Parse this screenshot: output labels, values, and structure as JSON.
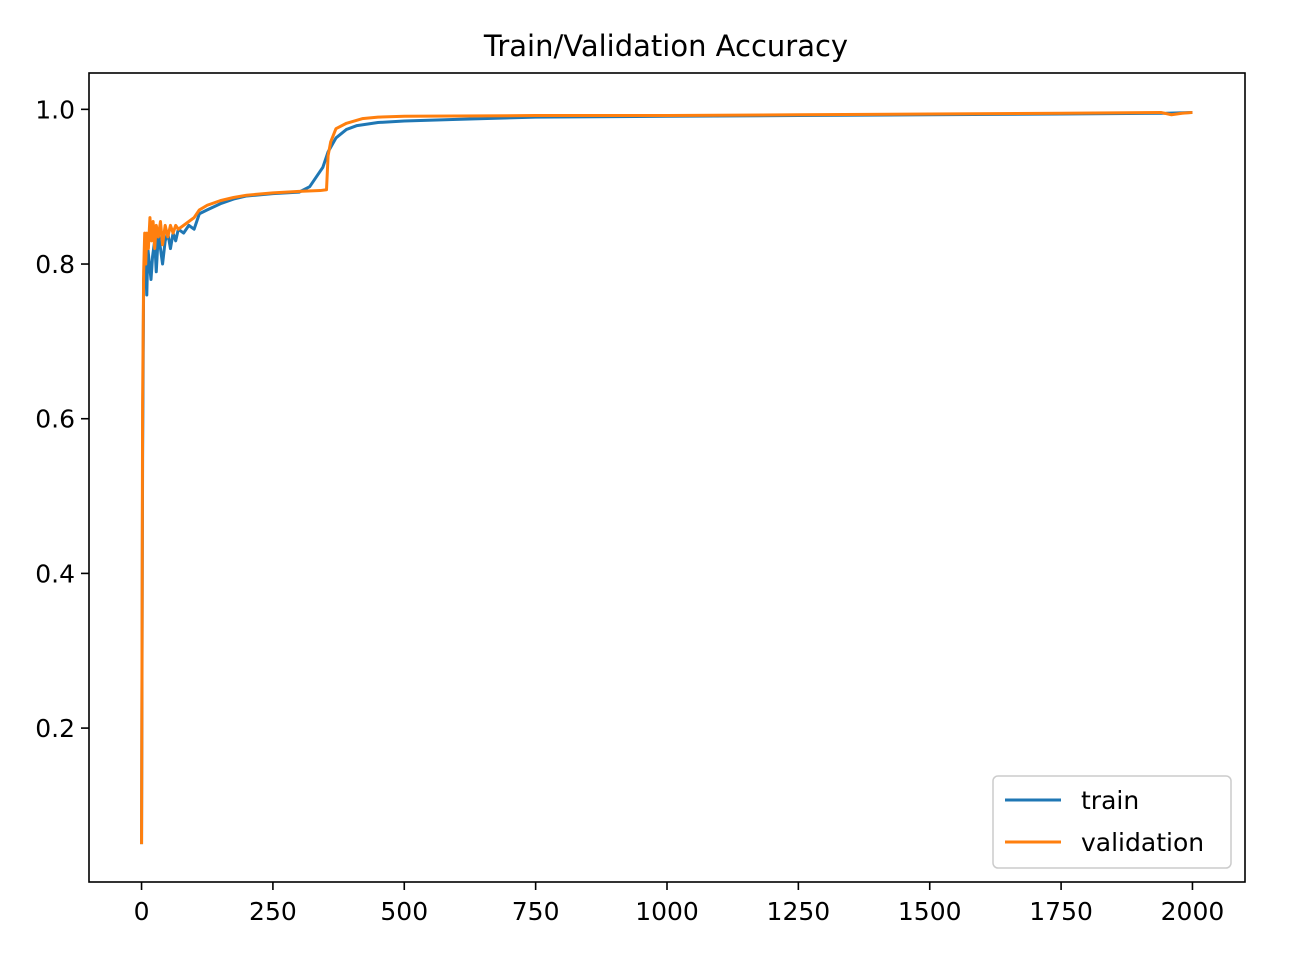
{
  "chart_data": {
    "type": "line",
    "title": "Train/Validation Accuracy",
    "xlabel": "",
    "ylabel": "",
    "xlim": [
      -100,
      2100
    ],
    "ylim": [
      0.001,
      1.047
    ],
    "xticks": [
      0,
      250,
      500,
      750,
      1000,
      1250,
      1500,
      1750,
      2000
    ],
    "xtick_labels": [
      "0",
      "250",
      "500",
      "750",
      "1000",
      "1250",
      "1500",
      "1750",
      "2000"
    ],
    "yticks": [
      0.2,
      0.4,
      0.6,
      0.8,
      1.0
    ],
    "ytick_labels": [
      "0.2",
      "0.4",
      "0.6",
      "0.8",
      "1.0"
    ],
    "grid": false,
    "legend_position": "lower-right",
    "series": [
      {
        "name": "train",
        "color": "#1f77b4",
        "points": [
          [
            0,
            0.05
          ],
          [
            2,
            0.55
          ],
          [
            4,
            0.78
          ],
          [
            6,
            0.8
          ],
          [
            8,
            0.81
          ],
          [
            10,
            0.76
          ],
          [
            12,
            0.82
          ],
          [
            15,
            0.8
          ],
          [
            18,
            0.78
          ],
          [
            21,
            0.81
          ],
          [
            25,
            0.83
          ],
          [
            28,
            0.79
          ],
          [
            32,
            0.84
          ],
          [
            36,
            0.82
          ],
          [
            40,
            0.8
          ],
          [
            45,
            0.83
          ],
          [
            50,
            0.84
          ],
          [
            55,
            0.82
          ],
          [
            60,
            0.84
          ],
          [
            65,
            0.83
          ],
          [
            70,
            0.845
          ],
          [
            80,
            0.84
          ],
          [
            90,
            0.85
          ],
          [
            100,
            0.845
          ],
          [
            110,
            0.865
          ],
          [
            125,
            0.87
          ],
          [
            150,
            0.878
          ],
          [
            175,
            0.884
          ],
          [
            200,
            0.888
          ],
          [
            250,
            0.891
          ],
          [
            300,
            0.893
          ],
          [
            320,
            0.9
          ],
          [
            335,
            0.915
          ],
          [
            345,
            0.925
          ],
          [
            355,
            0.945
          ],
          [
            370,
            0.963
          ],
          [
            390,
            0.974
          ],
          [
            410,
            0.979
          ],
          [
            450,
            0.983
          ],
          [
            500,
            0.985
          ],
          [
            600,
            0.987
          ],
          [
            750,
            0.99
          ],
          [
            1000,
            0.991
          ],
          [
            1250,
            0.992
          ],
          [
            1500,
            0.993
          ],
          [
            1750,
            0.994
          ],
          [
            1950,
            0.995
          ],
          [
            2000,
            0.996
          ]
        ]
      },
      {
        "name": "validation",
        "color": "#ff7f0e",
        "points": [
          [
            0,
            0.05
          ],
          [
            2,
            0.62
          ],
          [
            4,
            0.79
          ],
          [
            6,
            0.84
          ],
          [
            8,
            0.8
          ],
          [
            10,
            0.84
          ],
          [
            13,
            0.82
          ],
          [
            16,
            0.86
          ],
          [
            19,
            0.83
          ],
          [
            22,
            0.855
          ],
          [
            25,
            0.82
          ],
          [
            28,
            0.85
          ],
          [
            32,
            0.835
          ],
          [
            36,
            0.855
          ],
          [
            40,
            0.825
          ],
          [
            45,
            0.85
          ],
          [
            50,
            0.835
          ],
          [
            55,
            0.85
          ],
          [
            60,
            0.84
          ],
          [
            65,
            0.85
          ],
          [
            70,
            0.845
          ],
          [
            80,
            0.85
          ],
          [
            90,
            0.855
          ],
          [
            100,
            0.86
          ],
          [
            110,
            0.87
          ],
          [
            125,
            0.876
          ],
          [
            150,
            0.882
          ],
          [
            175,
            0.886
          ],
          [
            200,
            0.889
          ],
          [
            250,
            0.892
          ],
          [
            300,
            0.894
          ],
          [
            340,
            0.895
          ],
          [
            352,
            0.896
          ],
          [
            355,
            0.94
          ],
          [
            360,
            0.958
          ],
          [
            370,
            0.975
          ],
          [
            390,
            0.982
          ],
          [
            420,
            0.988
          ],
          [
            450,
            0.99
          ],
          [
            500,
            0.991
          ],
          [
            750,
            0.992
          ],
          [
            1000,
            0.992
          ],
          [
            1250,
            0.993
          ],
          [
            1500,
            0.994
          ],
          [
            1750,
            0.995
          ],
          [
            1940,
            0.996
          ],
          [
            1960,
            0.993
          ],
          [
            1980,
            0.995
          ],
          [
            2000,
            0.996
          ]
        ]
      }
    ]
  }
}
